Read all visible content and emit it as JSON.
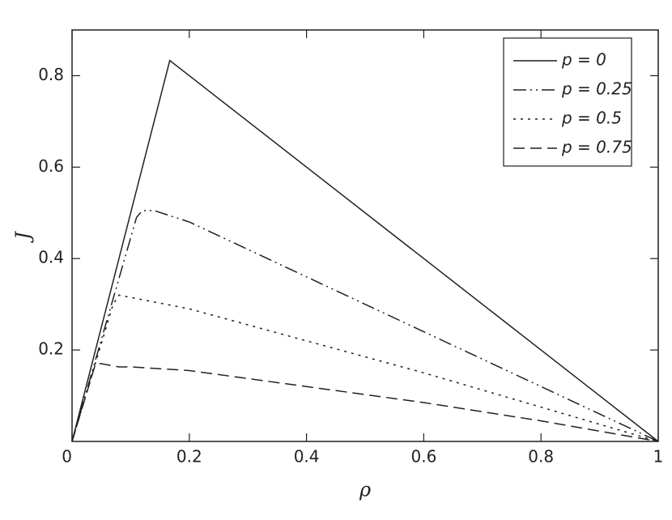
{
  "chart_data": {
    "type": "line",
    "xlabel": "ρ",
    "ylabel": "J",
    "xlim": [
      0,
      1
    ],
    "ylim": [
      0,
      0.9
    ],
    "xticks": [
      0,
      0.2,
      0.4,
      0.6,
      0.8,
      1
    ],
    "yticks": [
      0.2,
      0.4,
      0.6,
      0.8
    ],
    "legend": "upper right",
    "series": [
      {
        "name": "p = 0",
        "color": "#231f20",
        "dash": "solid",
        "x": [
          0,
          0.1667,
          1
        ],
        "values": [
          0,
          0.8333,
          0
        ]
      },
      {
        "name": "p = 0.25",
        "color": "#231f20",
        "dash": "dashdotdot",
        "x": [
          0,
          0.11,
          0.12,
          0.14,
          0.2,
          0.4,
          0.6,
          0.8,
          1
        ],
        "values": [
          0,
          0.49,
          0.505,
          0.505,
          0.48,
          0.36,
          0.24,
          0.12,
          0
        ]
      },
      {
        "name": "p = 0.5",
        "color": "#231f20",
        "dash": "dotted",
        "x": [
          0,
          0.07,
          0.08,
          0.1,
          0.2,
          0.4,
          0.6,
          0.8,
          1
        ],
        "values": [
          0,
          0.3,
          0.32,
          0.315,
          0.29,
          0.22,
          0.15,
          0.075,
          0
        ]
      },
      {
        "name": "p = 0.75",
        "color": "#231f20",
        "dash": "dashed",
        "x": [
          0,
          0.04,
          0.05,
          0.08,
          0.1,
          0.2,
          0.4,
          0.6,
          0.8,
          1
        ],
        "values": [
          0,
          0.17,
          0.17,
          0.163,
          0.163,
          0.155,
          0.12,
          0.085,
          0.045,
          0
        ]
      }
    ]
  }
}
